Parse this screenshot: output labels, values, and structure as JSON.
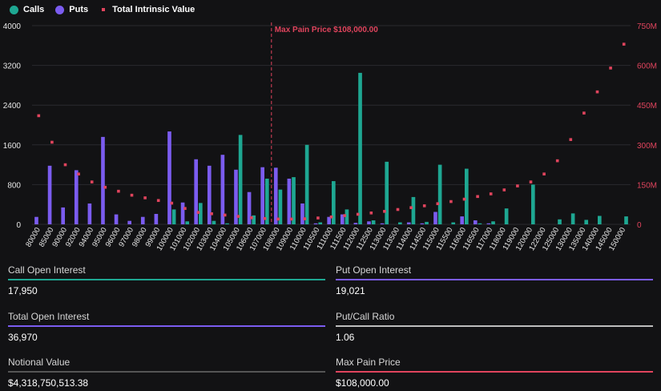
{
  "legend": {
    "calls": "Calls",
    "puts": "Puts",
    "intrinsic": "Total Intrinsic Value"
  },
  "colors": {
    "calls": "#1ea792",
    "puts": "#7b5cf0",
    "intrinsic": "#e0445d",
    "background": "#121214"
  },
  "chart_data": {
    "type": "bar",
    "categories": [
      "80000",
      "85000",
      "90000",
      "92000",
      "94000",
      "95000",
      "96000",
      "97000",
      "98000",
      "99000",
      "100000",
      "101000",
      "102000",
      "103000",
      "104000",
      "105000",
      "106000",
      "107000",
      "108000",
      "109000",
      "110000",
      "110500",
      "111000",
      "111500",
      "112000",
      "112500",
      "113000",
      "113500",
      "114000",
      "114500",
      "115000",
      "115500",
      "116000",
      "116500",
      "117000",
      "118000",
      "119000",
      "120000",
      "122000",
      "125000",
      "130000",
      "135000",
      "140000",
      "145000",
      "150000"
    ],
    "series": [
      {
        "name": "Calls",
        "axis": "left",
        "values": [
          0,
          0,
          0,
          0,
          0,
          0,
          0,
          0,
          0,
          0,
          300,
          60,
          430,
          70,
          20,
          1800,
          180,
          920,
          700,
          950,
          1600,
          40,
          870,
          300,
          3050,
          80,
          1260,
          40,
          550,
          50,
          1200,
          40,
          1120,
          20,
          60,
          320,
          0,
          800,
          0,
          100,
          220,
          90,
          170,
          0,
          160
        ]
      },
      {
        "name": "Puts",
        "axis": "left",
        "values": [
          150,
          1180,
          340,
          1090,
          420,
          1760,
          200,
          70,
          150,
          210,
          1870,
          440,
          1310,
          1180,
          1400,
          1100,
          650,
          1150,
          1140,
          920,
          420,
          20,
          150,
          200,
          30,
          60,
          20,
          0,
          40,
          20,
          250,
          0,
          160,
          80,
          20,
          0,
          0,
          0,
          0,
          0,
          0,
          0,
          0,
          0,
          0
        ]
      },
      {
        "name": "Total Intrinsic Value",
        "axis": "right",
        "values": [
          410,
          310,
          225,
          190,
          160,
          140,
          125,
          110,
          100,
          90,
          80,
          60,
          45,
          40,
          35,
          30,
          25,
          22,
          20,
          20,
          21,
          24,
          28,
          33,
          38,
          43,
          49,
          56,
          63,
          70,
          78,
          86,
          95,
          105,
          115,
          130,
          145,
          160,
          190,
          240,
          320,
          420,
          500,
          590,
          680
        ]
      }
    ],
    "y_left": {
      "ticks": [
        "0",
        "800",
        "1600",
        "2400",
        "3200",
        "4000"
      ],
      "range": [
        0,
        4000
      ]
    },
    "y_right": {
      "ticks": [
        "0",
        "150M",
        "300M",
        "450M",
        "600M",
        "750M"
      ],
      "range": [
        0,
        750
      ],
      "unit": "M"
    },
    "annotation": {
      "label": "Max Pain Price $108,000.00",
      "category": "108000"
    },
    "grid": true,
    "legend_position": "top-left"
  },
  "stats": [
    {
      "label": "Call Open Interest",
      "value": "17,950",
      "color": "#1ea792"
    },
    {
      "label": "Put Open Interest",
      "value": "19,021",
      "color": "#7b5cf0"
    },
    {
      "label": "Total Open Interest",
      "value": "36,970",
      "color": "#7b5cf0"
    },
    {
      "label": "Put/Call Ratio",
      "value": "1.06",
      "color": "#bdbdbd"
    },
    {
      "label": "Notional Value",
      "value": "$4,318,750,513.38",
      "color": "#555555"
    },
    {
      "label": "Max Pain Price",
      "value": "$108,000.00",
      "color": "#e0445d"
    }
  ]
}
